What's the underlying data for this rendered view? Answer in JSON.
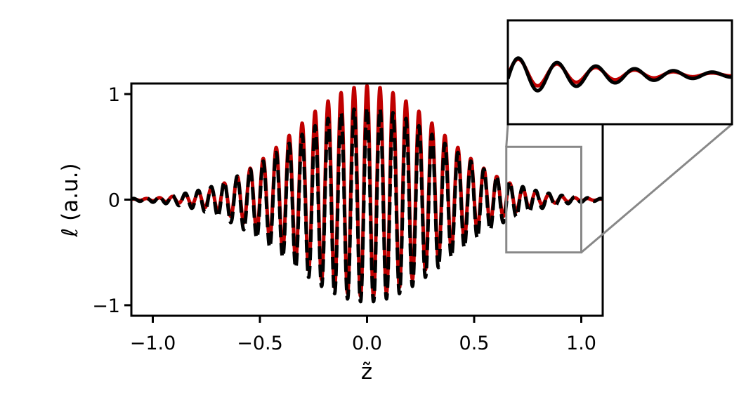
{
  "chart_data": {
    "type": "line",
    "ylabel": "ℓ (a.u.)",
    "xlabel": "z̃",
    "xlim": [
      -1.1,
      1.1
    ],
    "ylim": [
      -1.1,
      1.1
    ],
    "x_ticks": [
      -1.0,
      -0.5,
      0.0,
      0.5,
      1.0
    ],
    "x_tick_labels": [
      "−1.0",
      "−0.5",
      "0.0",
      "0.5",
      "1.0"
    ],
    "y_ticks": [
      -1,
      0,
      1
    ],
    "y_tick_labels": [
      "−1",
      "0",
      "1"
    ],
    "grid": false,
    "legend": "none",
    "model": {
      "form": "y = A·exp(−(x/w)^2)·cos(2π·f·x) + o·exp(−(x/w)^2)",
      "x_range": [
        -1.1,
        1.1
      ],
      "frequency": 16.5
    },
    "series": [
      {
        "style": "solid",
        "color": "#c00000",
        "amplitude": 1.0,
        "width": 0.48,
        "offset": 0.08,
        "envelope_peak": 1.0
      },
      {
        "style": "dashed",
        "color": "#000000",
        "amplitude": 0.92,
        "width": 0.52,
        "offset": -0.05,
        "envelope_peak": 0.95
      }
    ],
    "zoom_region": {
      "x": [
        0.65,
        1.0
      ],
      "y": [
        -0.5,
        0.5
      ],
      "box_color": "#888888"
    },
    "inset": {
      "xlim": [
        0.65,
        1.0
      ],
      "ylim": [
        -0.5,
        0.55
      ],
      "series_styles": [
        "solid",
        "solid"
      ]
    }
  }
}
